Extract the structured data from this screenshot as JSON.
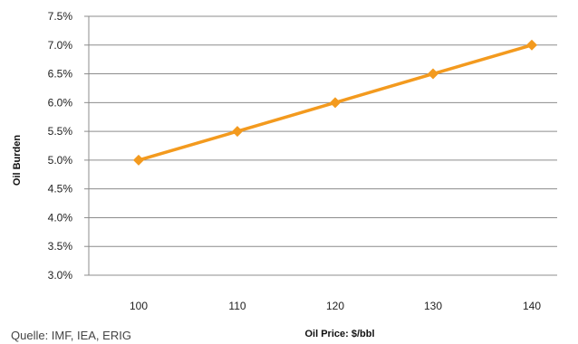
{
  "chart_data": {
    "type": "line",
    "x": [
      100,
      110,
      120,
      130,
      140
    ],
    "series": [
      {
        "values": [
          0.05,
          0.055,
          0.06,
          0.065,
          0.07
        ],
        "color": "#f39a1e",
        "marker": "diamond"
      }
    ],
    "x_tick_labels": [
      "100",
      "110",
      "120",
      "130",
      "140"
    ],
    "y_ticks": [
      0.03,
      0.035,
      0.04,
      0.045,
      0.05,
      0.055,
      0.06,
      0.065,
      0.07,
      0.075
    ],
    "y_tick_labels": [
      "3.0%",
      "3.5%",
      "4.0%",
      "4.5%",
      "5.0%",
      "5.5%",
      "6.0%",
      "6.5%",
      "7.0%",
      "7.5%"
    ],
    "ylim": [
      0.03,
      0.075
    ],
    "xlabel": "Oil Price: $/bbl",
    "ylabel": "Oil Burden",
    "grid": "horizontal",
    "legend": "none"
  },
  "source_note": "Quelle:  IMF, IEA, ERIG",
  "colors": {
    "gridline": "#8c8c8c",
    "axis": "#8c8c8c"
  }
}
